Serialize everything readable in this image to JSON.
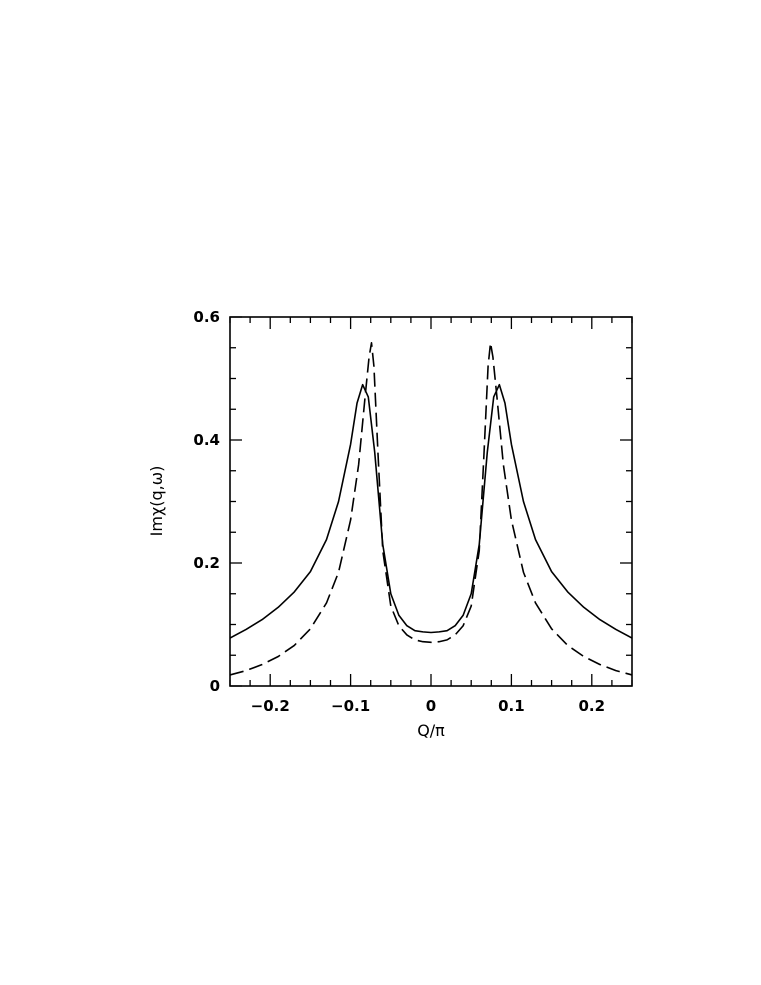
{
  "chart_data": {
    "type": "line",
    "xlabel": "Q/π",
    "ylabel": "Imχ(q,ω)",
    "xlim": [
      -0.25,
      0.25
    ],
    "ylim": [
      0,
      0.6
    ],
    "grid": false,
    "x_ticks": [
      -0.2,
      -0.1,
      0,
      0.1,
      0.2
    ],
    "x_tick_labels": [
      "−0.2",
      "−0.1",
      "0",
      "0.1",
      "0.2"
    ],
    "y_ticks": [
      0,
      0.2,
      0.4,
      0.6
    ],
    "y_tick_labels": [
      "0",
      "0.2",
      "0.4",
      "0.6"
    ],
    "x_minor_step": 0.025,
    "y_minor_step": 0.05,
    "series": [
      {
        "style": "solid",
        "points": [
          [
            -0.25,
            0.078
          ],
          [
            -0.23,
            0.092
          ],
          [
            -0.21,
            0.108
          ],
          [
            -0.19,
            0.128
          ],
          [
            -0.17,
            0.153
          ],
          [
            -0.15,
            0.186
          ],
          [
            -0.13,
            0.238
          ],
          [
            -0.115,
            0.3
          ],
          [
            -0.1,
            0.393
          ],
          [
            -0.092,
            0.46
          ],
          [
            -0.085,
            0.49
          ],
          [
            -0.078,
            0.47
          ],
          [
            -0.07,
            0.38
          ],
          [
            -0.06,
            0.23
          ],
          [
            -0.05,
            0.15
          ],
          [
            -0.04,
            0.115
          ],
          [
            -0.03,
            0.098
          ],
          [
            -0.02,
            0.09
          ],
          [
            -0.01,
            0.088
          ],
          [
            0,
            0.087
          ],
          [
            0.01,
            0.088
          ],
          [
            0.02,
            0.09
          ],
          [
            0.03,
            0.098
          ],
          [
            0.04,
            0.115
          ],
          [
            0.05,
            0.15
          ],
          [
            0.06,
            0.23
          ],
          [
            0.07,
            0.38
          ],
          [
            0.078,
            0.47
          ],
          [
            0.085,
            0.49
          ],
          [
            0.092,
            0.46
          ],
          [
            0.1,
            0.393
          ],
          [
            0.115,
            0.3
          ],
          [
            0.13,
            0.238
          ],
          [
            0.15,
            0.186
          ],
          [
            0.17,
            0.153
          ],
          [
            0.19,
            0.128
          ],
          [
            0.21,
            0.108
          ],
          [
            0.23,
            0.092
          ],
          [
            0.25,
            0.078
          ]
        ]
      },
      {
        "style": "dashed",
        "points": [
          [
            -0.25,
            0.018
          ],
          [
            -0.23,
            0.025
          ],
          [
            -0.21,
            0.035
          ],
          [
            -0.19,
            0.048
          ],
          [
            -0.17,
            0.066
          ],
          [
            -0.15,
            0.093
          ],
          [
            -0.13,
            0.135
          ],
          [
            -0.115,
            0.185
          ],
          [
            -0.1,
            0.27
          ],
          [
            -0.09,
            0.36
          ],
          [
            -0.082,
            0.47
          ],
          [
            -0.077,
            0.535
          ],
          [
            -0.074,
            0.558
          ],
          [
            -0.071,
            0.52
          ],
          [
            -0.066,
            0.38
          ],
          [
            -0.06,
            0.22
          ],
          [
            -0.05,
            0.13
          ],
          [
            -0.04,
            0.098
          ],
          [
            -0.03,
            0.083
          ],
          [
            -0.02,
            0.075
          ],
          [
            -0.01,
            0.072
          ],
          [
            0,
            0.071
          ],
          [
            0.01,
            0.072
          ],
          [
            0.02,
            0.075
          ],
          [
            0.03,
            0.083
          ],
          [
            0.04,
            0.098
          ],
          [
            0.05,
            0.13
          ],
          [
            0.06,
            0.22
          ],
          [
            0.066,
            0.38
          ],
          [
            0.071,
            0.52
          ],
          [
            0.074,
            0.558
          ],
          [
            0.077,
            0.535
          ],
          [
            0.082,
            0.47
          ],
          [
            0.09,
            0.36
          ],
          [
            0.1,
            0.27
          ],
          [
            0.115,
            0.185
          ],
          [
            0.13,
            0.135
          ],
          [
            0.15,
            0.093
          ],
          [
            0.17,
            0.066
          ],
          [
            0.19,
            0.048
          ],
          [
            0.21,
            0.035
          ],
          [
            0.23,
            0.025
          ],
          [
            0.25,
            0.018
          ]
        ]
      }
    ]
  }
}
